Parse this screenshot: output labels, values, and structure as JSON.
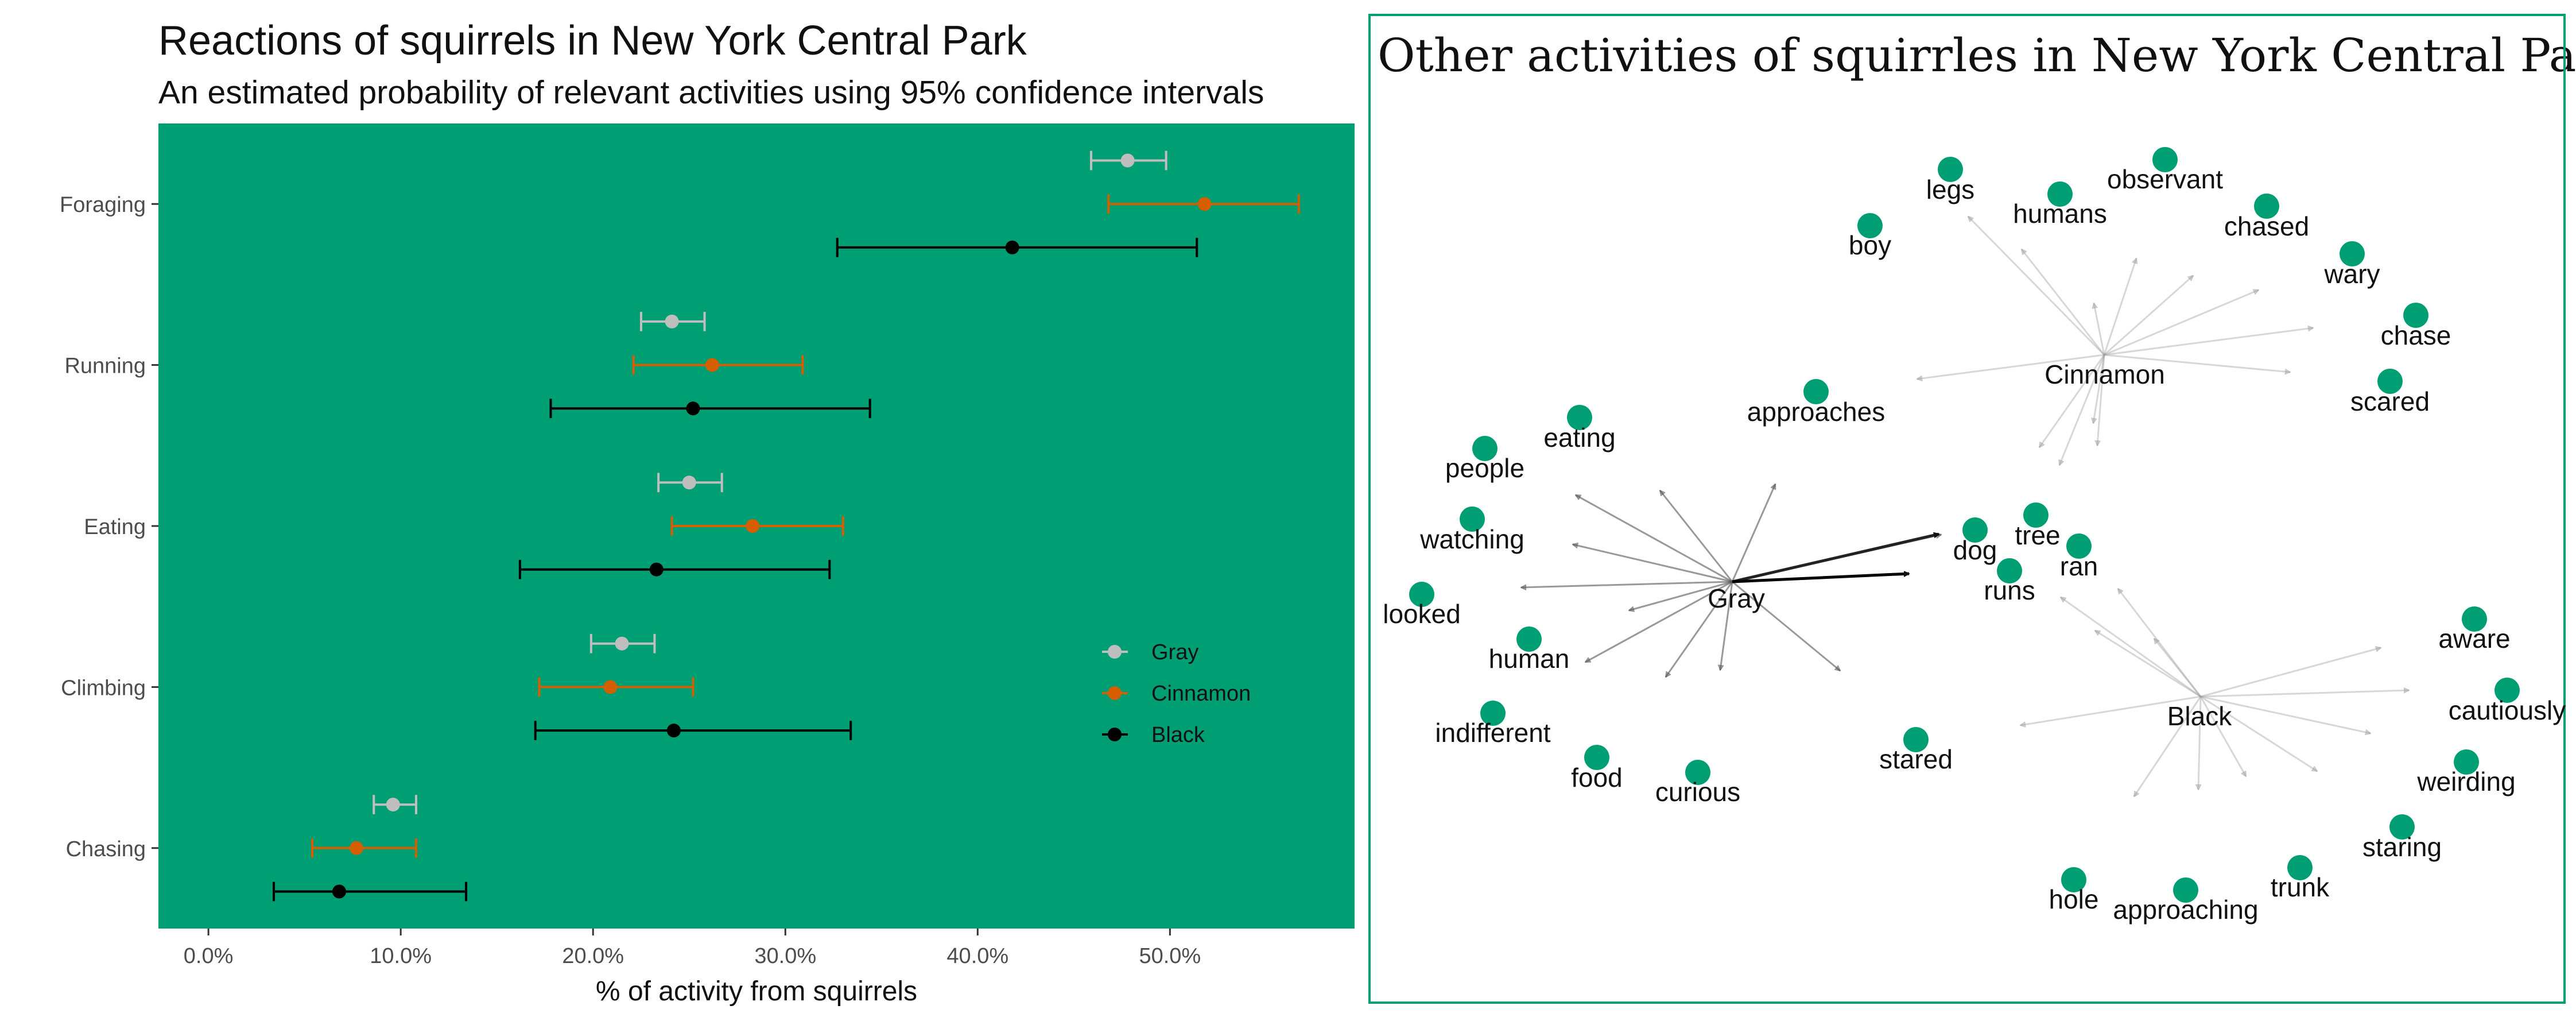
{
  "chart_data": [
    {
      "type": "errorbar",
      "title": "Reactions of squirrels in New York Central Park",
      "subtitle": "An estimated probability of relevant activities using 95% confidence intervals",
      "xlabel": "% of activity from squirrels",
      "ylabel": "",
      "xlim": [
        -0.026,
        0.596
      ],
      "x_ticks": [
        0.0,
        0.1,
        0.2,
        0.3,
        0.4,
        0.5
      ],
      "x_tick_labels": [
        "0.0%",
        "10.0%",
        "20.0%",
        "30.0%",
        "40.0%",
        "50.0%"
      ],
      "categories": [
        "Foraging",
        "Running",
        "Eating",
        "Climbing",
        "Chasing"
      ],
      "grid": false,
      "panel_background": "#009E73",
      "legend_position": "right",
      "series": [
        {
          "name": "Gray",
          "color": "#BEBEBE",
          "estimate": [
            0.478,
            0.241,
            0.25,
            0.215,
            0.096
          ],
          "lower": [
            0.459,
            0.225,
            0.234,
            0.199,
            0.086
          ],
          "upper": [
            0.498,
            0.258,
            0.267,
            0.232,
            0.108
          ]
        },
        {
          "name": "Cinnamon",
          "color": "#D55E00",
          "estimate": [
            0.518,
            0.262,
            0.283,
            0.209,
            0.077
          ],
          "lower": [
            0.468,
            0.221,
            0.241,
            0.172,
            0.054
          ],
          "upper": [
            0.567,
            0.309,
            0.33,
            0.252,
            0.108
          ]
        },
        {
          "name": "Black",
          "color": "#000000",
          "estimate": [
            0.418,
            0.252,
            0.233,
            0.242,
            0.068
          ],
          "lower": [
            0.327,
            0.178,
            0.162,
            0.17,
            0.034
          ],
          "upper": [
            0.514,
            0.344,
            0.323,
            0.334,
            0.134
          ]
        }
      ]
    },
    {
      "type": "network",
      "title": "Other activities of squirrles in New York Central Park",
      "hubs": [
        "Gray",
        "Cinnamon",
        "Black"
      ],
      "node_color": "#009E73",
      "words": [
        "observant",
        "legs",
        "humans",
        "chased",
        "boy",
        "wary",
        "chase",
        "scared",
        "Cinnamon",
        "approaches",
        "eating",
        "people",
        "watching",
        "tree",
        "dog",
        "ran",
        "runs",
        "Gray",
        "looked",
        "aware",
        "human",
        "cautiously",
        "indifferent",
        "Black",
        "stared",
        "food",
        "curious",
        "weirding",
        "staring",
        "trunk",
        "hole",
        "approaching"
      ]
    }
  ]
}
